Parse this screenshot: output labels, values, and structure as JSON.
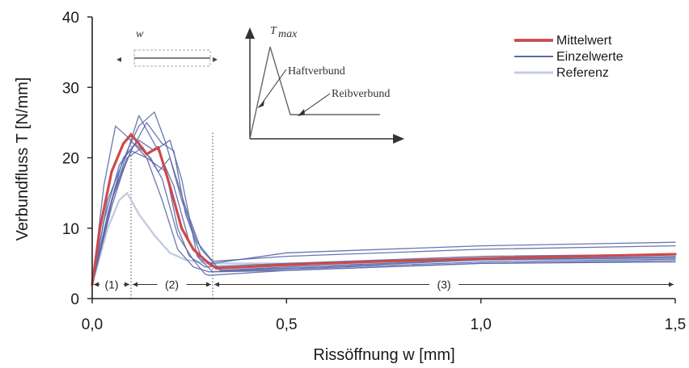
{
  "chart_data": {
    "type": "line",
    "xlabel": "Rissöffnung w [mm]",
    "ylabel": "Verbundfluss T  [N/mm]",
    "xlim": [
      0,
      1.5
    ],
    "ylim": [
      0,
      40
    ],
    "xticks": [
      0,
      0.5,
      1.0,
      1.5
    ],
    "xtick_labels": [
      "0,0",
      "0,5",
      "1,0",
      "1,5"
    ],
    "yticks": [
      0,
      10,
      20,
      30,
      40
    ],
    "ytick_labels": [
      "0",
      "10",
      "20",
      "30",
      "40"
    ],
    "grid": false,
    "legend_position": "top-right",
    "colors": {
      "mean": "#cc4a4a",
      "single": "#5a68a8",
      "reference": "#c4cbe0",
      "axis": "#222222"
    },
    "series": [
      {
        "name": "Mittelwert",
        "role": "mean",
        "x": [
          0.0,
          0.02,
          0.05,
          0.08,
          0.1,
          0.12,
          0.14,
          0.17,
          0.2,
          0.23,
          0.26,
          0.3,
          0.32,
          0.4,
          0.5,
          0.75,
          1.0,
          1.25,
          1.5
        ],
        "y": [
          2.0,
          10.0,
          18.0,
          22.0,
          23.3,
          22.0,
          20.5,
          21.5,
          16.0,
          10.0,
          7.0,
          5.0,
          4.3,
          4.5,
          4.8,
          5.3,
          5.7,
          6.0,
          6.3
        ]
      },
      {
        "name": "Einzelwerte",
        "role": "single",
        "x": [
          0.0,
          0.04,
          0.09,
          0.12,
          0.16,
          0.19,
          0.23,
          0.27,
          0.31,
          0.5,
          1.0,
          1.5
        ],
        "y": [
          2.0,
          14.0,
          21.0,
          24.5,
          26.5,
          22.0,
          14.0,
          8.0,
          5.3,
          6.0,
          7.0,
          7.5
        ]
      },
      {
        "role": "single",
        "x": [
          0.0,
          0.03,
          0.06,
          0.09,
          0.14,
          0.19,
          0.22,
          0.25,
          0.29,
          0.5,
          1.0,
          1.5
        ],
        "y": [
          2.0,
          16.0,
          24.5,
          23.0,
          20.0,
          18.0,
          10.0,
          6.0,
          4.5,
          5.0,
          6.0,
          6.3
        ]
      },
      {
        "role": "single",
        "x": [
          0.0,
          0.05,
          0.1,
          0.14,
          0.18,
          0.21,
          0.24,
          0.28,
          0.33,
          0.6,
          1.0,
          1.5
        ],
        "y": [
          2.0,
          14.0,
          21.0,
          25.0,
          22.0,
          21.0,
          12.0,
          6.0,
          4.0,
          4.5,
          5.5,
          5.8
        ]
      },
      {
        "role": "single",
        "x": [
          0.0,
          0.04,
          0.08,
          0.12,
          0.16,
          0.2,
          0.23,
          0.27,
          0.31,
          0.5,
          1.0,
          1.5
        ],
        "y": [
          2.0,
          12.0,
          20.0,
          22.5,
          21.0,
          22.5,
          17.0,
          6.0,
          3.8,
          4.0,
          5.0,
          5.4
        ]
      },
      {
        "role": "single",
        "x": [
          0.0,
          0.03,
          0.07,
          0.11,
          0.15,
          0.18,
          0.22,
          0.26,
          0.29,
          0.3,
          0.5,
          1.0,
          1.5
        ],
        "y": [
          2.0,
          11.0,
          19.0,
          22.0,
          20.0,
          17.0,
          9.0,
          5.5,
          3.5,
          3.3,
          4.0,
          5.0,
          5.2
        ]
      },
      {
        "role": "single",
        "x": [
          0.0,
          0.05,
          0.09,
          0.13,
          0.17,
          0.2,
          0.24,
          0.28,
          0.33,
          0.5,
          1.0,
          1.5
        ],
        "y": [
          2.0,
          13.0,
          20.0,
          21.5,
          18.0,
          20.0,
          13.0,
          7.0,
          4.0,
          4.5,
          5.5,
          6.0
        ]
      },
      {
        "role": "single",
        "x": [
          0.0,
          0.04,
          0.08,
          0.12,
          0.17,
          0.21,
          0.25,
          0.28,
          0.31,
          0.5,
          1.0,
          1.5
        ],
        "y": [
          2.0,
          12.0,
          19.0,
          26.0,
          21.0,
          16.0,
          8.0,
          5.5,
          5.0,
          6.5,
          7.5,
          8.0
        ]
      },
      {
        "role": "single",
        "x": [
          0.0,
          0.03,
          0.06,
          0.1,
          0.14,
          0.18,
          0.22,
          0.26,
          0.3,
          0.5,
          1.0,
          1.5
        ],
        "y": [
          2.0,
          9.0,
          16.0,
          21.0,
          20.0,
          14.0,
          7.0,
          4.5,
          3.8,
          4.2,
          5.2,
          5.6
        ]
      },
      {
        "name": "Referenz",
        "role": "reference",
        "x": [
          0.0,
          0.04,
          0.07,
          0.09,
          0.12,
          0.16,
          0.2,
          0.24,
          0.3,
          0.5,
          1.0,
          1.5
        ],
        "y": [
          2.0,
          10.0,
          14.0,
          15.0,
          12.0,
          9.0,
          6.5,
          5.5,
          5.0,
          5.0,
          5.5,
          5.8
        ]
      }
    ],
    "legend": [
      {
        "label": "Mittelwert",
        "role": "mean"
      },
      {
        "label": "Einzelwerte",
        "role": "single"
      },
      {
        "label": "Referenz",
        "role": "reference"
      }
    ],
    "region_markers": [
      {
        "label": "(1)",
        "from": 0.0,
        "to": 0.1
      },
      {
        "label": "(2)",
        "from": 0.1,
        "to": 0.31
      },
      {
        "label": "(3)",
        "from": 0.31,
        "to": 1.5
      }
    ],
    "region_marker_y": 2.0,
    "boundary_lines_x": [
      0.1,
      0.31
    ],
    "inset": {
      "specimen_label": "w",
      "peak_label": "T",
      "peak_subscript": "max",
      "label_1": "Haftverbund",
      "label_2": "Reibverbund"
    }
  }
}
